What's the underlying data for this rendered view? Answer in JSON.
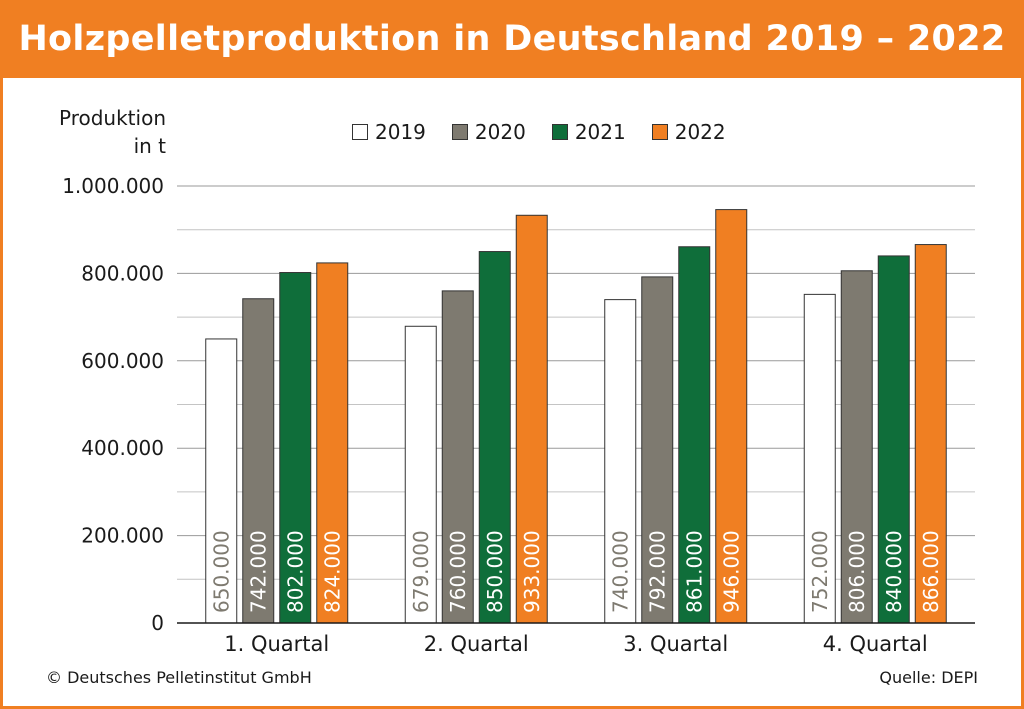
{
  "header": {
    "title": "Holzpelletproduktion in Deutschland 2019 – 2022"
  },
  "footer": {
    "copyright": "© Deutsches Pelletinstitut GmbH",
    "source": "Quelle: DEPI"
  },
  "colors": {
    "accent": "#f07f22",
    "2019": "#ffffff",
    "2020": "#7e7a70",
    "2021": "#0f6e3a",
    "2022": "#f07f22"
  },
  "chart_data": {
    "type": "bar",
    "title": "Holzpelletproduktion in Deutschland 2019 – 2022",
    "ylabel_lines": [
      "Produktion",
      "in t"
    ],
    "categories": [
      "1. Quartal",
      "2. Quartal",
      "3. Quartal",
      "4. Quartal"
    ],
    "series": [
      {
        "name": "2019",
        "values": [
          650000,
          679000,
          740000,
          752000
        ],
        "labels": [
          "650.000",
          "679.000",
          "740.000",
          "752.000"
        ]
      },
      {
        "name": "2020",
        "values": [
          742000,
          760000,
          792000,
          806000
        ],
        "labels": [
          "742.000",
          "760.000",
          "792.000",
          "806.000"
        ]
      },
      {
        "name": "2021",
        "values": [
          802000,
          850000,
          861000,
          840000
        ],
        "labels": [
          "802.000",
          "850.000",
          "861.000",
          "840.000"
        ]
      },
      {
        "name": "2022",
        "values": [
          824000,
          933000,
          946000,
          866000
        ],
        "labels": [
          "824.000",
          "933.000",
          "946.000",
          "866.000"
        ]
      }
    ],
    "ylim": [
      0,
      1000000
    ],
    "yticks": [
      0,
      200000,
      400000,
      600000,
      800000,
      1000000
    ],
    "ytick_labels": [
      "0",
      "200.000",
      "400.000",
      "600.000",
      "800.000",
      "1.000.000"
    ],
    "grid": true,
    "legend_position": "top"
  }
}
